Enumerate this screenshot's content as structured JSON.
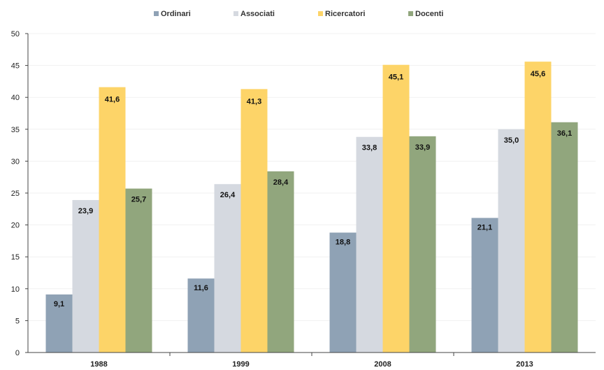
{
  "chart_data": {
    "type": "bar",
    "categories": [
      "1988",
      "1999",
      "2008",
      "2013"
    ],
    "series": [
      {
        "name": "Ordinari",
        "color": "#8fa2b5",
        "values": [
          9.1,
          11.6,
          18.8,
          21.1
        ],
        "labels": [
          "9,1",
          "11,6",
          "18,8",
          "21,1"
        ]
      },
      {
        "name": "Associati",
        "color": "#d5d9e0",
        "values": [
          23.9,
          26.4,
          33.8,
          35.0
        ],
        "labels": [
          "23,9",
          "26,4",
          "33,8",
          "35,0"
        ]
      },
      {
        "name": "Ricercatori",
        "color": "#fdd468",
        "values": [
          41.6,
          41.3,
          45.1,
          45.6
        ],
        "labels": [
          "41,6",
          "41,3",
          "45,1",
          "45,6"
        ]
      },
      {
        "name": "Docenti",
        "color": "#91a67d",
        "values": [
          25.7,
          28.4,
          33.9,
          36.1
        ],
        "labels": [
          "25,7",
          "28,4",
          "33,9",
          "36,1"
        ]
      }
    ],
    "ylim": [
      0,
      50
    ],
    "yticks": [
      0,
      5,
      10,
      15,
      20,
      25,
      30,
      35,
      40,
      45,
      50
    ],
    "title": "",
    "xlabel": "",
    "ylabel": "",
    "legend": "top",
    "grid": true
  }
}
